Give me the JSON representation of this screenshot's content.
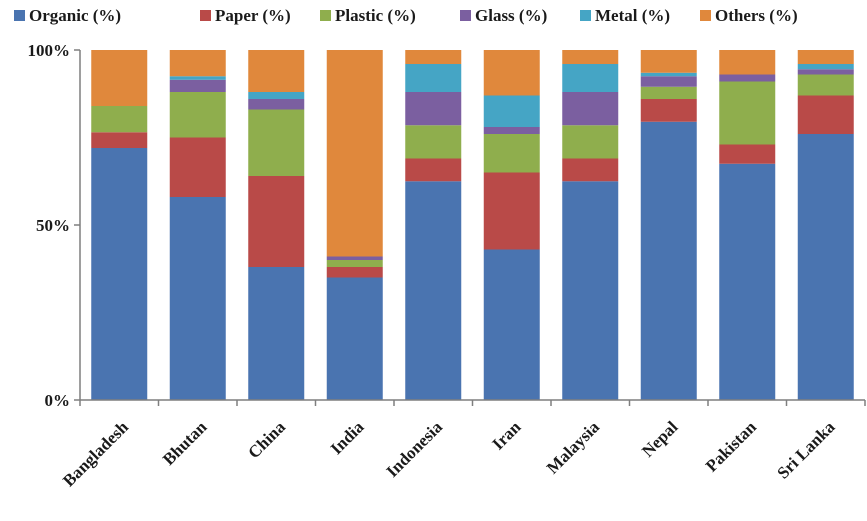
{
  "chart_data": {
    "type": "bar",
    "stacked": true,
    "percent": true,
    "title": "",
    "xlabel": "",
    "ylabel": "",
    "ylim": [
      0,
      100
    ],
    "yticks": [
      "0%",
      "50%",
      "100%"
    ],
    "grid": false,
    "legend_position": "top",
    "categories": [
      "Bangladesh",
      "Bhutan",
      "China",
      "India",
      "Indonesia",
      "Iran",
      "Malaysia",
      "Nepal",
      "Pakistan",
      "Sri Lanka"
    ],
    "series": [
      {
        "name": "Organic (%)",
        "color": "#4a74b0",
        "values": [
          72,
          58,
          38,
          35,
          62.5,
          43,
          62.5,
          79.5,
          67.5,
          76
        ]
      },
      {
        "name": "Paper (%)",
        "color": "#b94a48",
        "values": [
          4.5,
          17,
          26,
          3,
          6.5,
          22,
          6.5,
          6.5,
          5.5,
          11
        ]
      },
      {
        "name": "Plastic (%)",
        "color": "#8fae4d",
        "values": [
          7.5,
          13,
          19,
          2,
          9.5,
          11,
          9.5,
          3.5,
          18,
          6
        ]
      },
      {
        "name": "Glass (%)",
        "color": "#7b5fa0",
        "values": [
          0,
          3.5,
          3,
          1,
          9.5,
          2,
          9.5,
          3,
          2,
          1.5
        ]
      },
      {
        "name": "Metal (%)",
        "color": "#45a5c5",
        "values": [
          0,
          1,
          2,
          0,
          8,
          9,
          8,
          1,
          0,
          1.5
        ]
      },
      {
        "name": "Others (%)",
        "color": "#e0883c",
        "values": [
          16,
          7.5,
          12,
          59,
          4,
          13,
          4,
          6.5,
          7,
          4
        ]
      }
    ]
  }
}
